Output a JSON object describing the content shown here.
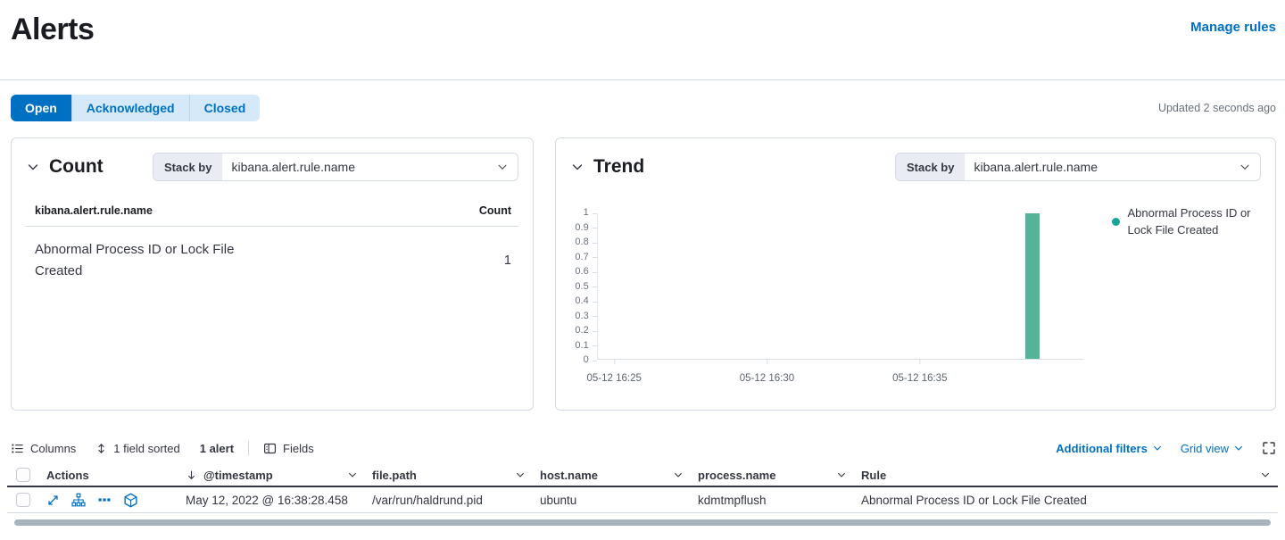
{
  "colors": {
    "accent": "#0071c2",
    "bar": "#54b399",
    "legend_dot": "#16a597"
  },
  "header": {
    "title": "Alerts",
    "manage_rules": "Manage rules"
  },
  "status_tabs": {
    "items": [
      {
        "label": "Open",
        "active": true
      },
      {
        "label": "Acknowledged",
        "active": false
      },
      {
        "label": "Closed",
        "active": false
      }
    ],
    "updated_text": "Updated 2 seconds ago"
  },
  "count_panel": {
    "title": "Count",
    "stack_by_label": "Stack by",
    "stack_by_value": "kibana.alert.rule.name",
    "table": {
      "col_name": "kibana.alert.rule.name",
      "col_count": "Count",
      "rows": [
        {
          "name": "Abnormal Process ID or Lock File Created",
          "count": "1"
        }
      ]
    }
  },
  "trend_panel": {
    "title": "Trend",
    "stack_by_label": "Stack by",
    "stack_by_value": "kibana.alert.rule.name",
    "legend_label": "Abnormal Process ID or Lock File Created",
    "chart_data": {
      "type": "bar",
      "title": "Trend",
      "xlabel": "",
      "ylabel": "",
      "ylim": [
        0,
        1
      ],
      "grid": false,
      "legend_position": "right",
      "y_ticks": [
        "1",
        "0.9",
        "0.8",
        "0.7",
        "0.6",
        "0.5",
        "0.4",
        "0.3",
        "0.2",
        "0.1",
        "0"
      ],
      "x_ticks": [
        "05-12 16:25",
        "05-12 16:30",
        "05-12 16:35"
      ],
      "series": [
        {
          "name": "Abnormal Process ID or Lock File Created",
          "color": "#54b399",
          "points": [
            {
              "x": "2022-05-12 16:38",
              "y": 1
            }
          ]
        }
      ]
    }
  },
  "grid_toolbar": {
    "columns": "Columns",
    "sorted": "1 field sorted",
    "alert_count": "1 alert",
    "fields": "Fields",
    "additional_filters": "Additional filters",
    "grid_view": "Grid view"
  },
  "alerts_table": {
    "columns": [
      {
        "label": "Actions"
      },
      {
        "label": "@timestamp"
      },
      {
        "label": "file.path"
      },
      {
        "label": "host.name"
      },
      {
        "label": "process.name"
      },
      {
        "label": "Rule"
      }
    ],
    "rows": [
      {
        "timestamp": "May 12, 2022 @ 16:38:28.458",
        "file_path": "/var/run/haldrund.pid",
        "host_name": "ubuntu",
        "process_name": "kdmtmpflush",
        "rule": "Abnormal Process ID or Lock File Created"
      }
    ]
  }
}
